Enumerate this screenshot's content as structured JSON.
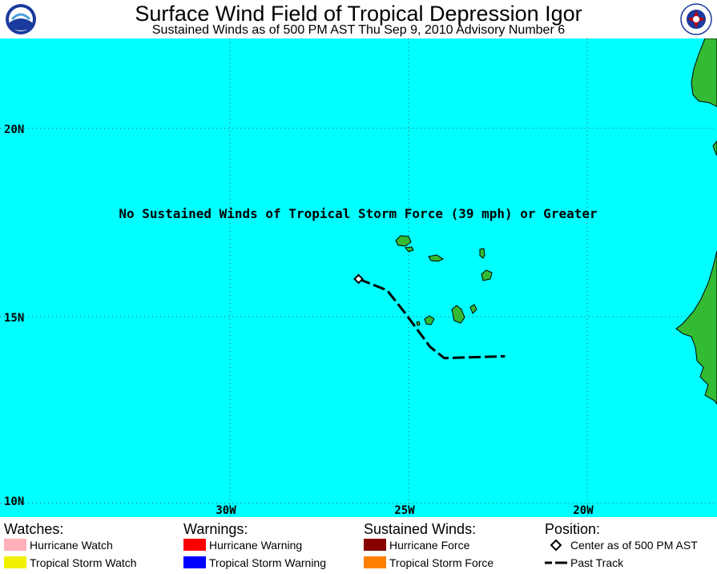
{
  "header": {
    "title": "Surface Wind Field of Tropical Depression Igor",
    "subtitle": "Sustained Winds as of 500 PM AST Thu Sep 9, 2010    Advisory Number 6",
    "left_logo_text": "NOAA",
    "right_logo_text": "NATIONAL WEATHER SERVICE"
  },
  "map": {
    "ocean_color": "#00ffff",
    "land_color": "#33bb33",
    "message": "No Sustained Winds of Tropical Storm Force (39 mph) or Greater",
    "lat_labels": [
      "20N",
      "15N",
      "10N"
    ],
    "lon_labels": [
      "30W",
      "25W",
      "20W"
    ],
    "storm_center": {
      "lat": 16.0,
      "lon": -26.4
    },
    "past_track": [
      {
        "lat": 16.0,
        "lon": -26.4
      },
      {
        "lat": 15.7,
        "lon": -25.6
      },
      {
        "lat": 15.1,
        "lon": -25.1
      },
      {
        "lat": 14.2,
        "lon": -24.4
      },
      {
        "lat": 13.9,
        "lon": -24.0
      },
      {
        "lat": 13.95,
        "lon": -22.3
      }
    ]
  },
  "legend": {
    "watches": {
      "heading": "Watches:",
      "items": [
        {
          "label": "Hurricane Watch",
          "color": "#ffb0b8"
        },
        {
          "label": "Tropical Storm Watch",
          "color": "#f0f000"
        }
      ]
    },
    "warnings": {
      "heading": "Warnings:",
      "items": [
        {
          "label": "Hurricane Warning",
          "color": "#ff0000"
        },
        {
          "label": "Tropical Storm Warning",
          "color": "#0000ff"
        }
      ]
    },
    "winds": {
      "heading": "Sustained Winds:",
      "items": [
        {
          "label": "Hurricane Force",
          "color": "#880000"
        },
        {
          "label": "Tropical Storm Force",
          "color": "#ff8000"
        }
      ]
    },
    "position": {
      "heading": "Position:",
      "center_label": "Center as of 500 PM AST",
      "track_label": "Past Track"
    }
  }
}
